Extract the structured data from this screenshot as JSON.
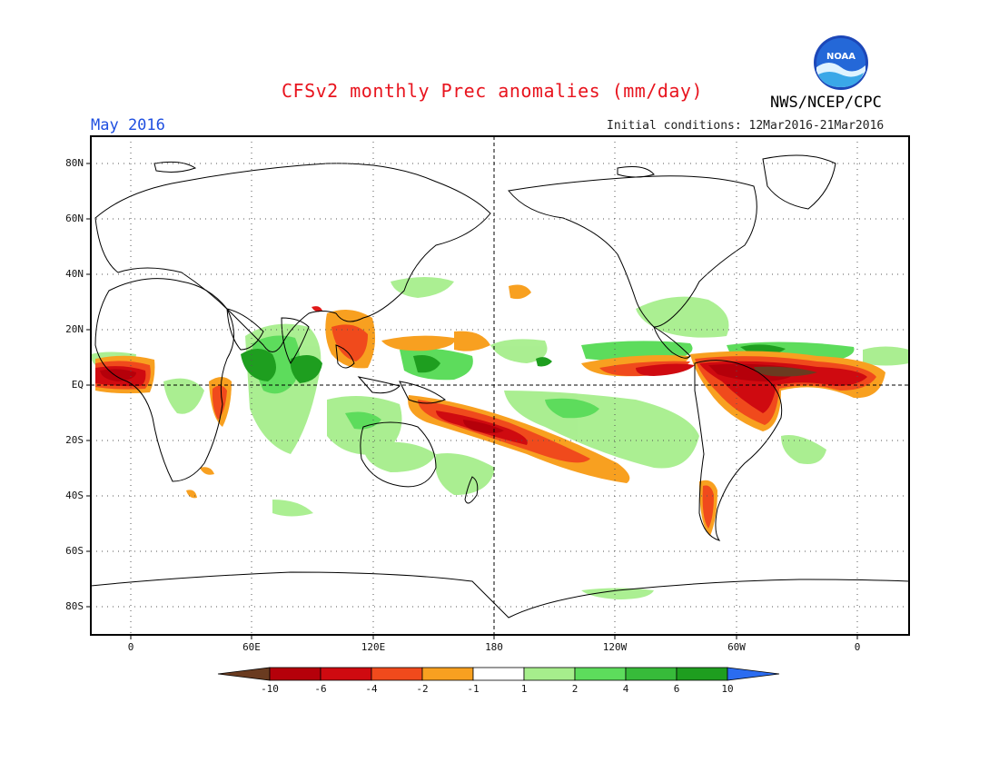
{
  "header": {
    "title": "CFSv2 monthly Prec anomalies (mm/day)",
    "month": "May 2016",
    "initial_conditions": "Initial conditions: 12Mar2016-21Mar2016",
    "agency": "NWS/NCEP/CPC",
    "logo_text": "NOAA"
  },
  "map": {
    "lat_labels": [
      "80N",
      "60N",
      "40N",
      "20N",
      "EQ",
      "20S",
      "40S",
      "60S",
      "80S"
    ],
    "lon_labels": [
      "0",
      "60E",
      "120E",
      "180",
      "120W",
      "60W",
      "0"
    ],
    "lat_range": [
      -90,
      90
    ],
    "lon_range": [
      -15,
      380
    ]
  },
  "colorbar": {
    "labels": [
      "-10",
      "-6",
      "-4",
      "-2",
      "-1",
      "1",
      "2",
      "4",
      "6",
      "10"
    ],
    "colors": [
      "#6a3b20",
      "#b5000a",
      "#cf0a10",
      "#f04a1c",
      "#f8a020",
      "#ffffff",
      "#a6ee8c",
      "#5ddc5c",
      "#37bb3a",
      "#1e9e1f",
      "#2b6cf0"
    ]
  }
}
